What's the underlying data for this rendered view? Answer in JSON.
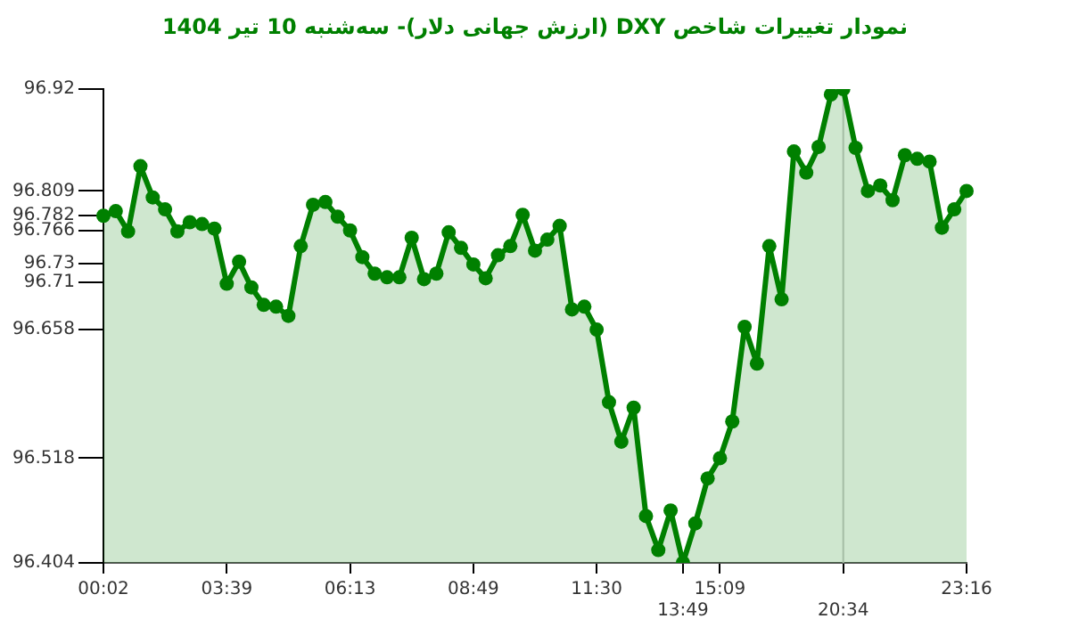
{
  "chart_data": {
    "type": "area",
    "title": "نمودار تغییرات شاخص DXY (ارزش جهانی دلار)- سه‌شنبه  10 تیر 1404",
    "categories": [
      "00:02",
      null,
      null,
      null,
      null,
      null,
      null,
      null,
      null,
      null,
      "03:39",
      null,
      null,
      null,
      null,
      null,
      null,
      null,
      null,
      null,
      "06:13",
      null,
      null,
      null,
      null,
      null,
      null,
      null,
      null,
      null,
      "08:49",
      null,
      null,
      null,
      null,
      null,
      null,
      null,
      null,
      null,
      "11:30",
      null,
      null,
      null,
      null,
      null,
      null,
      "13:49",
      null,
      null,
      "15:09",
      null,
      null,
      null,
      null,
      null,
      null,
      null,
      null,
      null,
      "20:34",
      null,
      null,
      null,
      null,
      null,
      null,
      null,
      null,
      null,
      "23:16"
    ],
    "series": [
      {
        "color": "#008000",
        "values": [
          96.782,
          96.787,
          96.765,
          96.836,
          96.802,
          96.789,
          96.765,
          96.775,
          96.773,
          96.768,
          96.708,
          96.732,
          96.704,
          96.685,
          96.683,
          96.673,
          96.749,
          96.794,
          96.797,
          96.781,
          96.766,
          96.737,
          96.719,
          96.715,
          96.715,
          96.758,
          96.713,
          96.719,
          96.764,
          96.747,
          96.729,
          96.714,
          96.739,
          96.749,
          96.783,
          96.744,
          96.756,
          96.771,
          96.68,
          96.683,
          96.658,
          96.579,
          96.536,
          96.573,
          96.455,
          96.418,
          96.461,
          96.404,
          96.447,
          96.496,
          96.518,
          96.558,
          96.661,
          96.621,
          96.749,
          96.691,
          96.852,
          96.829,
          96.857,
          96.914,
          96.92,
          96.856,
          96.809,
          96.815,
          96.799,
          96.848,
          96.844,
          96.841,
          96.769,
          96.789,
          96.809
        ]
      }
    ],
    "ylim": [
      96.404,
      96.92
    ],
    "yticks": [
      96.404,
      96.518,
      96.658,
      96.71,
      96.73,
      96.766,
      96.782,
      96.809,
      96.92
    ],
    "marker": "circle",
    "line_style": "solid",
    "ref_lines": [
      {
        "axis": "x",
        "value": "20:34",
        "color": "#cccccc"
      }
    ]
  }
}
